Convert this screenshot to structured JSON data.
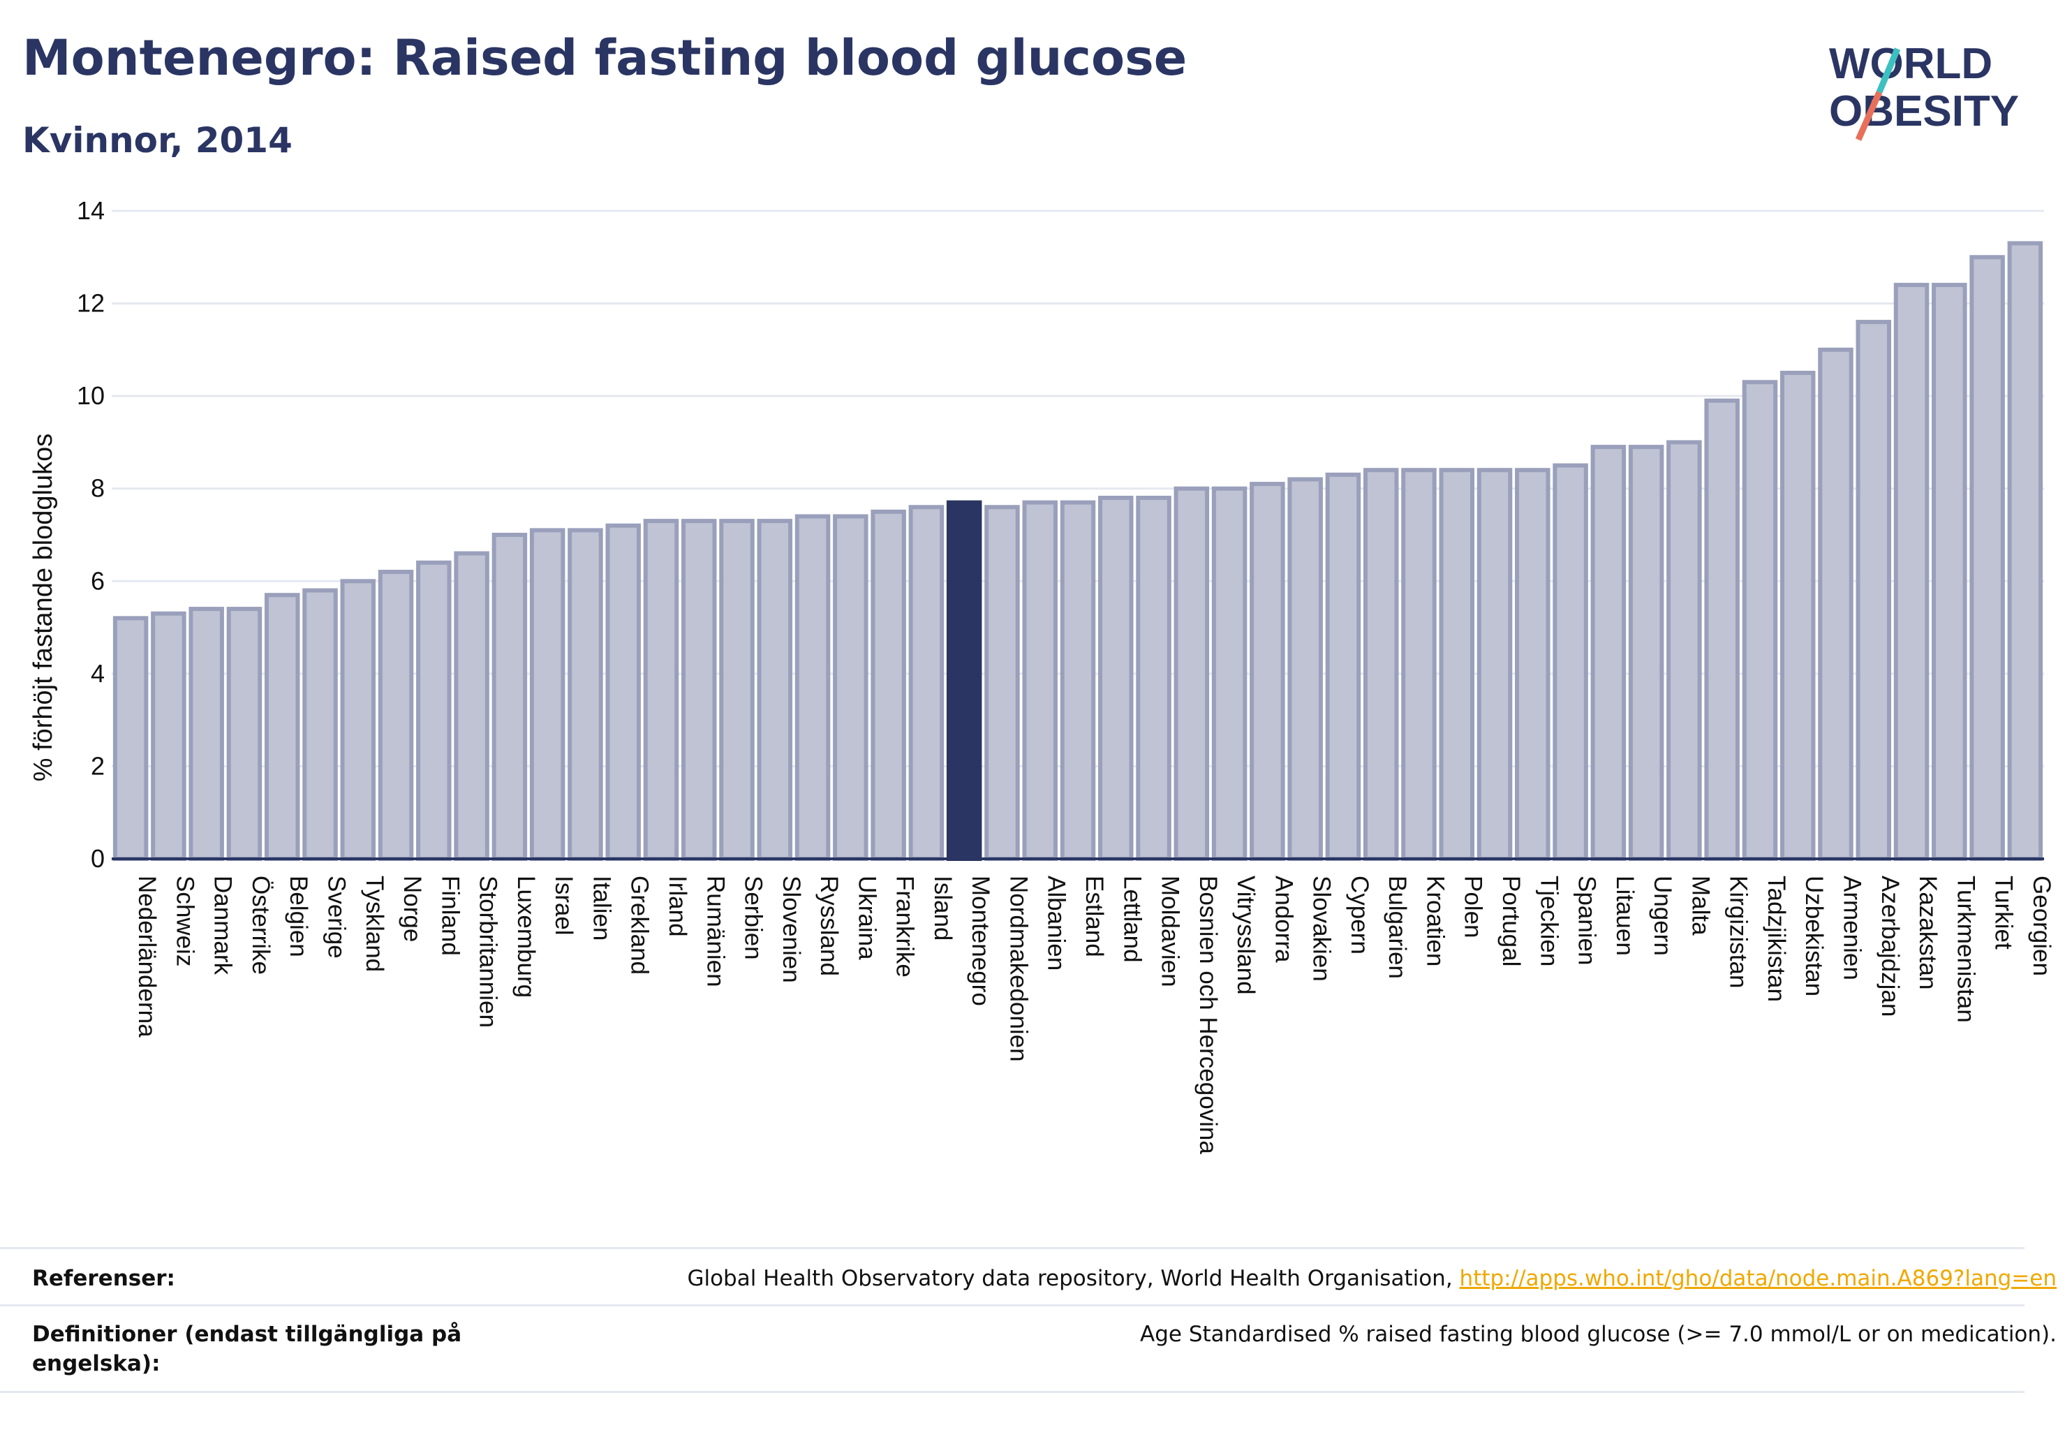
{
  "header": {
    "title": "Montenegro: Raised fasting blood glucose",
    "subtitle": "Kvinnor, 2014",
    "logo_line1": "WORLD",
    "logo_line2": "OBESITY"
  },
  "colors": {
    "bar": "#bfc3d3",
    "bar_stroke": "#9aa0bb",
    "highlight": "#2a3563",
    "grid": "#e6e8f0",
    "axis": "#2a3563",
    "logo_teal": "#3cc0c0",
    "logo_red": "#e8705a",
    "link": "#f0a800"
  },
  "chart_data": {
    "type": "bar",
    "ylabel": "% förhöjt fastande blodglukos",
    "ylim": [
      0,
      14
    ],
    "yticks": [
      0,
      2,
      4,
      6,
      8,
      10,
      12,
      14
    ],
    "grid": true,
    "highlight": "Montenegro",
    "categories": [
      "Nederländerna",
      "Schweiz",
      "Danmark",
      "Österrike",
      "Belgien",
      "Sverige",
      "Tyskland",
      "Norge",
      "Finland",
      "Storbritannien",
      "Luxemburg",
      "Israel",
      "Italien",
      "Grekland",
      "Irland",
      "Rumänien",
      "Serbien",
      "Slovenien",
      "Ryssland",
      "Ukraina",
      "Frankrike",
      "Island",
      "Montenegro",
      "Nordmakedonien",
      "Albanien",
      "Estland",
      "Lettland",
      "Moldavien",
      "Bosnien och Hercegovina",
      "Vitryssland",
      "Andorra",
      "Slovakien",
      "Cypern",
      "Bulgarien",
      "Kroatien",
      "Polen",
      "Portugal",
      "Tjeckien",
      "Spanien",
      "Litauen",
      "Ungern",
      "Malta",
      "Kirgizistan",
      "Tadzjikistan",
      "Uzbekistan",
      "Armenien",
      "Azerbajdzjan",
      "Kazakstan",
      "Turkmenistan",
      "Turkiet",
      "Georgien"
    ],
    "values": [
      5.2,
      5.3,
      5.4,
      5.4,
      5.7,
      5.8,
      6.0,
      6.2,
      6.4,
      6.6,
      7.0,
      7.1,
      7.1,
      7.2,
      7.3,
      7.3,
      7.3,
      7.3,
      7.4,
      7.4,
      7.5,
      7.6,
      7.7,
      7.6,
      7.7,
      7.7,
      7.8,
      7.8,
      8.0,
      8.0,
      8.1,
      8.2,
      8.3,
      8.4,
      8.4,
      8.4,
      8.4,
      8.4,
      8.5,
      8.9,
      8.9,
      9.0,
      9.9,
      10.3,
      10.5,
      11.0,
      11.6,
      12.4,
      12.4,
      13.0,
      13.3
    ]
  },
  "footer": {
    "ref_label": "Referenser:",
    "ref_text": "Global Health Observatory data repository, World Health Organisation, ",
    "ref_link": "http://apps.who.int/gho/data/node.main.A869?lang=en",
    "def_label": "Definitioner (endast tillgängliga på engelska):",
    "def_text": "Age Standardised % raised fasting blood glucose (>= 7.0 mmol/L or on medication)."
  }
}
